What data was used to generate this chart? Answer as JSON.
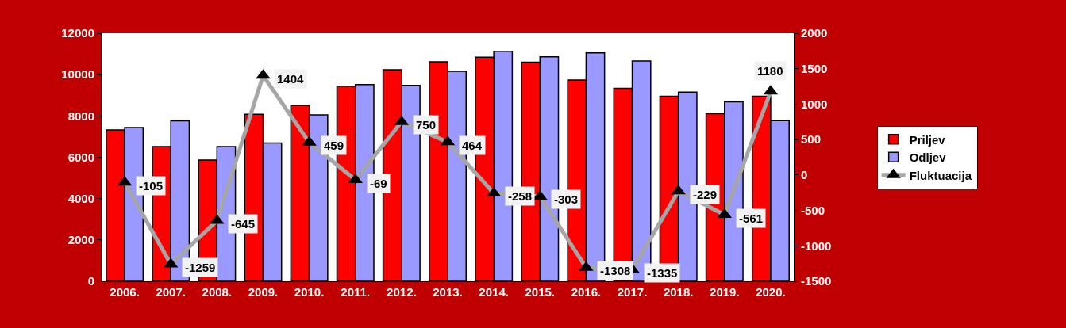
{
  "chart_data": {
    "type": "bar",
    "categories": [
      "2006.",
      "2007.",
      "2008.",
      "2009.",
      "2010.",
      "2011.",
      "2012.",
      "2013.",
      "2014.",
      "2015.",
      "2016.",
      "2017.",
      "2018.",
      "2019.",
      "2020."
    ],
    "series": [
      {
        "name": "Priljev",
        "color": "#ff0000",
        "values": [
          7320,
          6520,
          5870,
          8080,
          8510,
          9440,
          10240,
          10620,
          10840,
          10600,
          9740,
          9340,
          8950,
          8110,
          8950
        ]
      },
      {
        "name": "Odljev",
        "color": "#9999ff",
        "values": [
          7440,
          7760,
          6520,
          6690,
          8050,
          9520,
          9480,
          10160,
          11130,
          10860,
          11050,
          10660,
          9150,
          8680,
          7770
        ]
      },
      {
        "name": "Fluktuacija",
        "type": "line",
        "axis": "y2",
        "color": "#a6a6a6",
        "marker": "triangle",
        "data_labels": true,
        "values": [
          -105,
          -1259,
          -645,
          1404,
          459,
          -69,
          750,
          464,
          -258,
          -303,
          -1308,
          -1335,
          -229,
          -561,
          1180
        ]
      }
    ],
    "ylim": [
      0,
      12000
    ],
    "yticks": [
      0,
      2000,
      4000,
      6000,
      8000,
      10000,
      12000
    ],
    "y2lim": [
      -1500,
      2000
    ],
    "y2ticks": [
      -1500,
      -1000,
      -500,
      0,
      500,
      1000,
      1500,
      2000
    ],
    "legend": "right"
  }
}
